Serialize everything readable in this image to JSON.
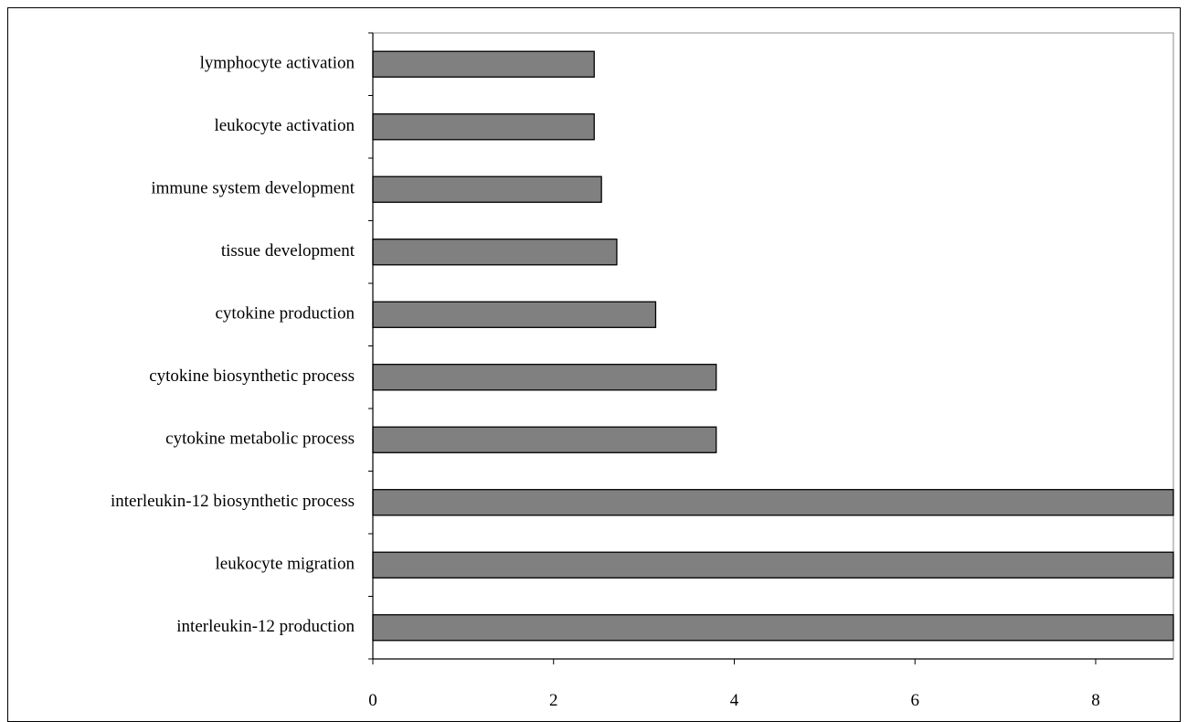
{
  "chart_data": {
    "type": "bar",
    "orientation": "horizontal",
    "title": "",
    "xlabel": "",
    "ylabel": "",
    "categories": [
      "lymphocyte activation",
      "leukocyte activation",
      "immune system development",
      "tissue development",
      "cytokine production",
      "cytokine biosynthetic process",
      "cytokine metabolic process",
      "interleukin-12 biosynthetic process",
      "leukocyte migration",
      "interleukin-12 production"
    ],
    "values": [
      2.45,
      2.45,
      2.53,
      2.7,
      3.13,
      3.8,
      3.8,
      8.86,
      8.86,
      8.86
    ],
    "xlim": [
      0,
      8.86
    ],
    "xticks": [
      "0",
      "2",
      "4",
      "6",
      "8"
    ],
    "grid": false,
    "legend": "none",
    "bar_color": "#808080",
    "bar_edge_color": "#000000"
  }
}
